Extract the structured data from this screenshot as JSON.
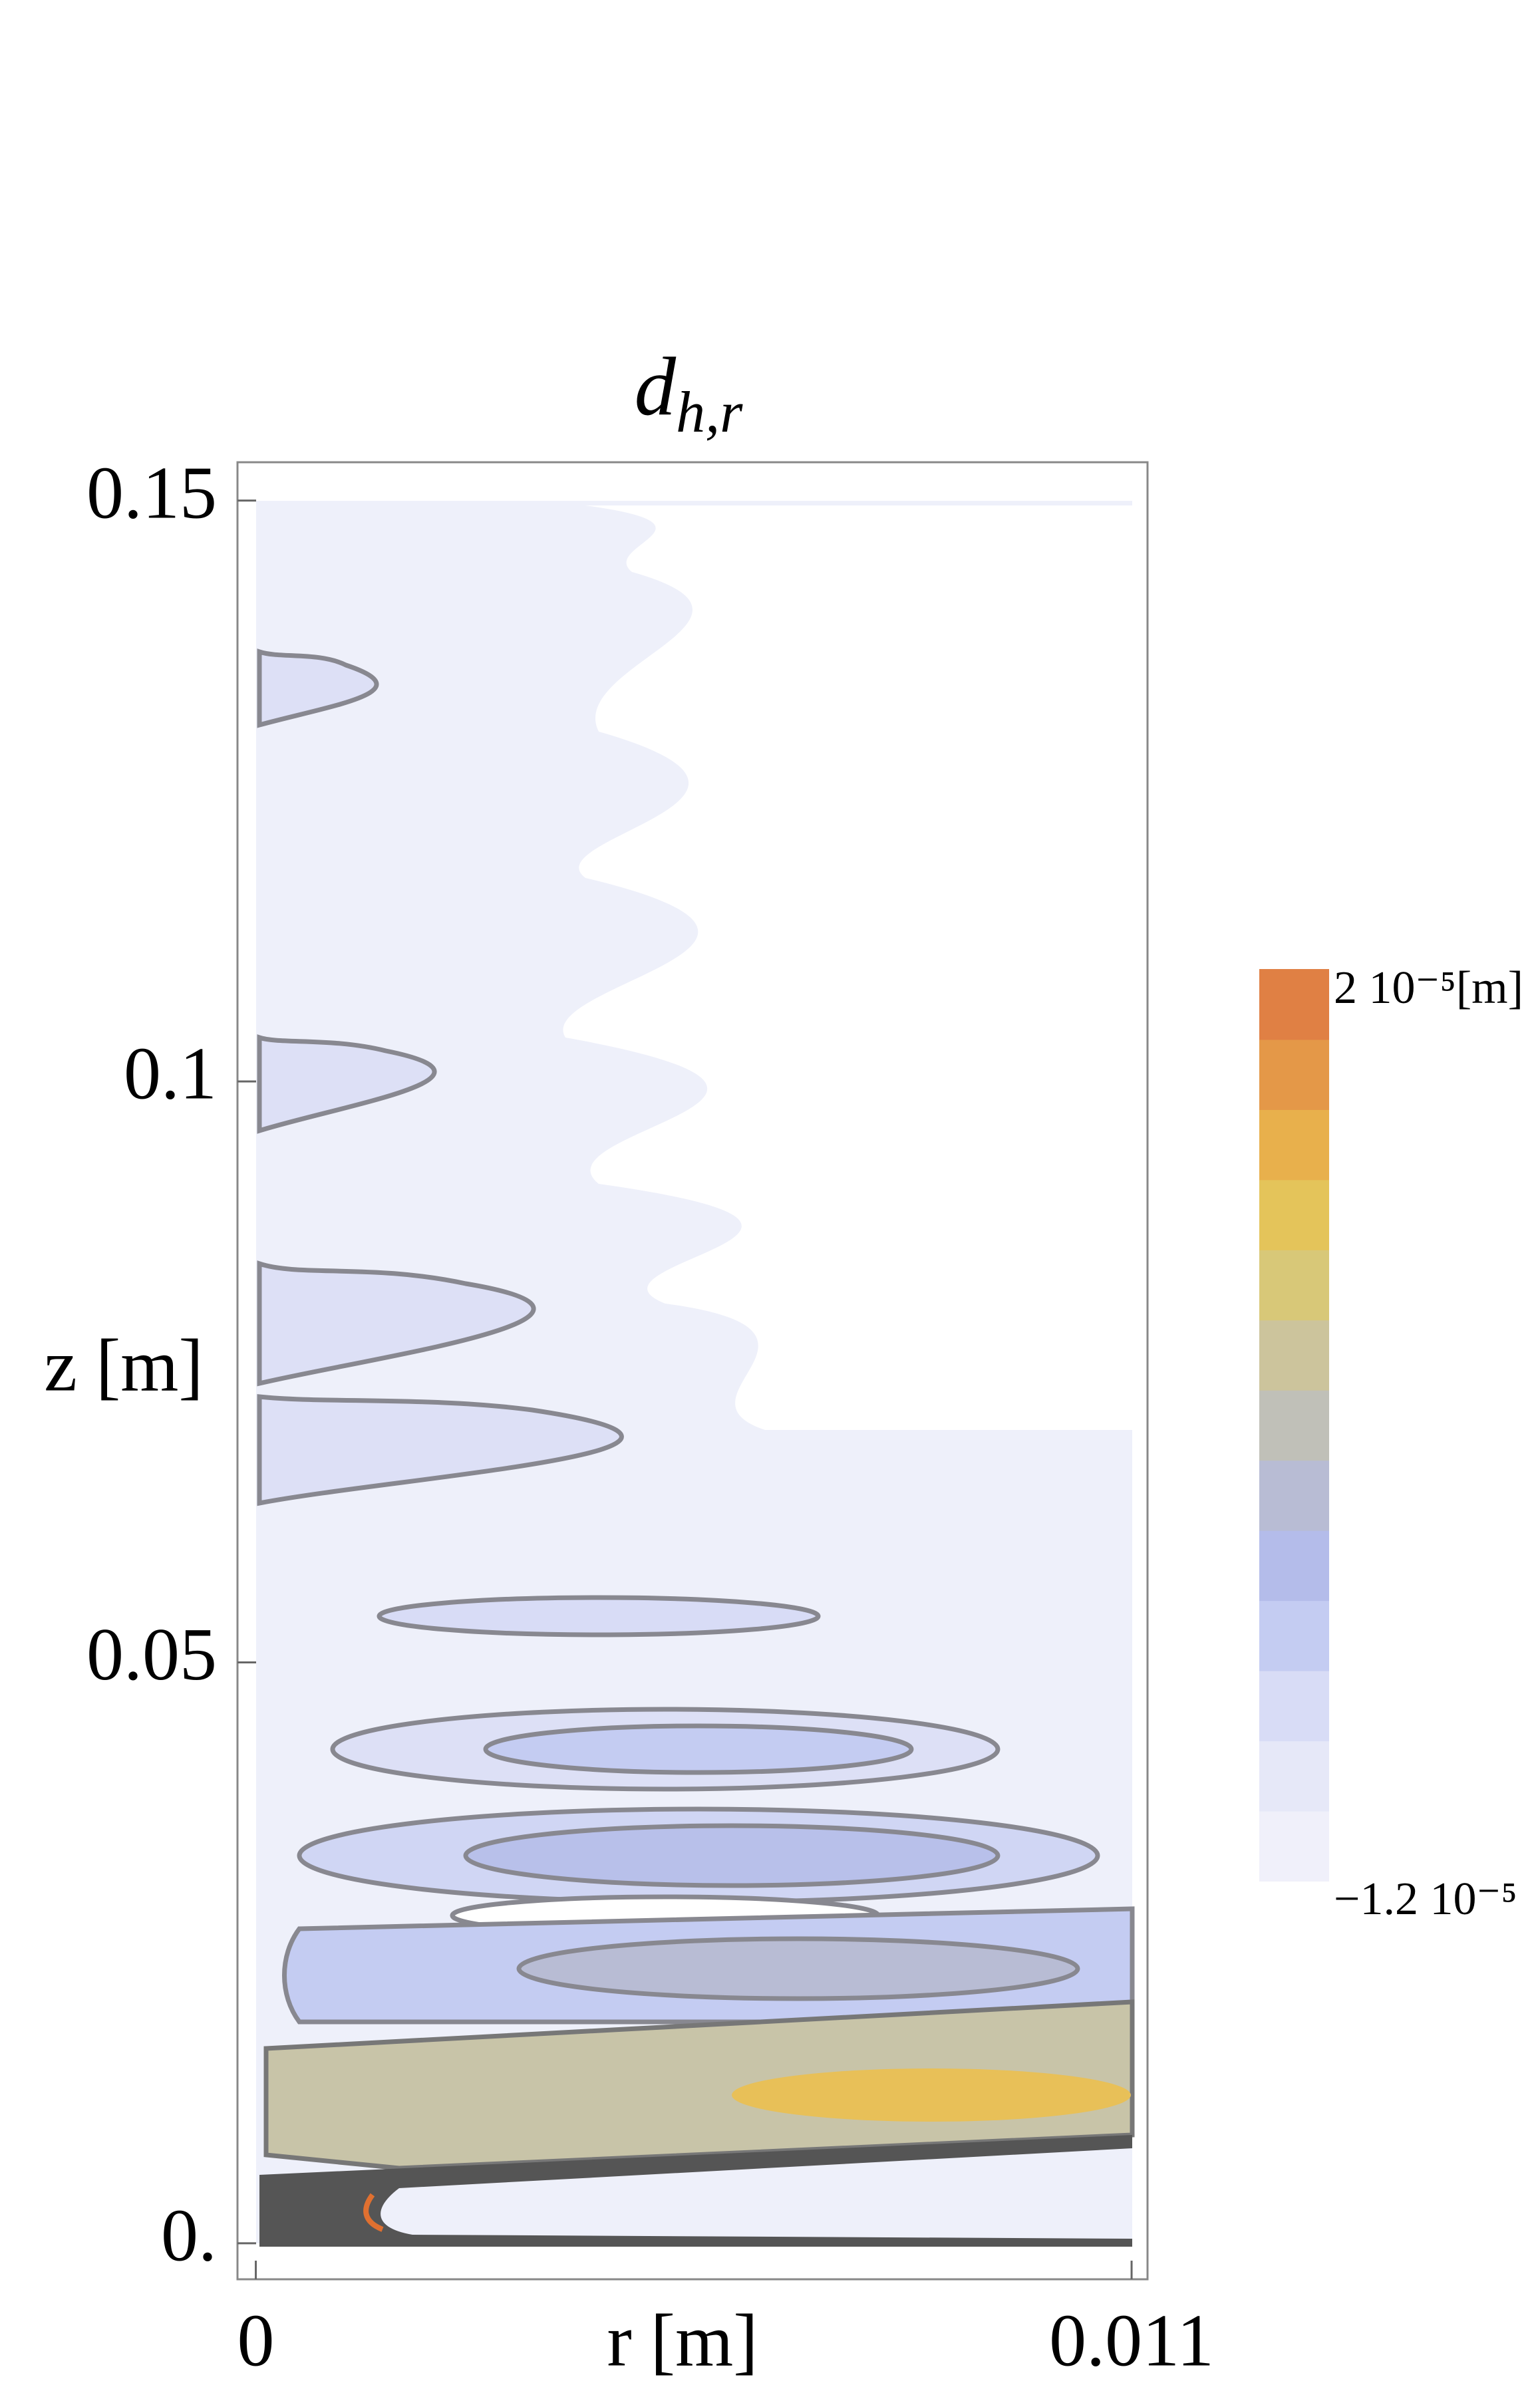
{
  "chart_data": {
    "type": "contour",
    "title": "d",
    "title_subscript": "h,r",
    "x_label": "r [m]",
    "y_label": "z [m]",
    "xlim": [
      -0.00023,
      0.0112
    ],
    "ylim": [
      -0.0031,
      0.1533
    ],
    "xticks": [
      0,
      0.011
    ],
    "yticks": [
      {
        "value": 0,
        "label": "0."
      },
      0.05,
      0.1,
      0.15
    ],
    "colorbar": {
      "max": {
        "value": 2e-05,
        "label": "2 10⁻⁵[m]"
      },
      "min": {
        "value": -1.2e-05,
        "label": "−1.2 10⁻⁵"
      },
      "colors": [
        "#f0f0fa",
        "#e6e8f8",
        "#d8dcf6",
        "#c4ccf2",
        "#b4bcea",
        "#b8bcd4",
        "#c0c0b8",
        "#ccc49c",
        "#d8c878",
        "#e4c45a",
        "#e8b04c",
        "#e49848",
        "#e08044"
      ]
    }
  }
}
